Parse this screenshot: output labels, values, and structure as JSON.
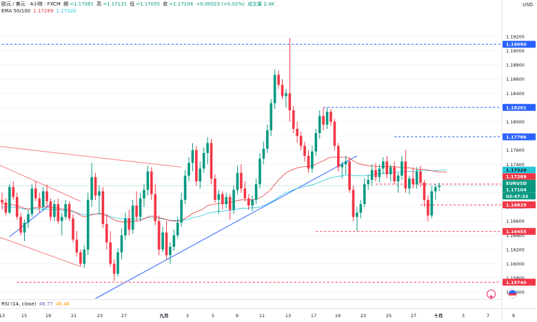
{
  "header": {
    "symbol_line": "欧元 / 美元 · 4小時 · FXCM",
    "open_label": "開",
    "open_value": "=1.17081",
    "high_label": "高",
    "high_value": "=1.17131",
    "low_label": "低",
    "low_value": "=1.17055",
    "close_label": "收",
    "close_value": "=1.17104",
    "change": "+0.00023 (+0.02%)",
    "volume": "成交量 2.4K"
  },
  "ema": {
    "label": "EMA 50/100",
    "value_50": "1.17289",
    "value_100": "1.17320",
    "color_50": "#e53935",
    "color_100": "#26c6da"
  },
  "rsi": {
    "label": "RSI (14, close)",
    "value": "46.77",
    "ma_value": "46.48",
    "color": "#7e57c2",
    "ma_color": "#ff9800"
  },
  "currency": "USD",
  "colors": {
    "up": "#089981",
    "down": "#f23645",
    "level_red": "#f23645",
    "level_blue": "#2962ff",
    "trend_pink": "#f77c80",
    "trend_blue": "#2962ff",
    "grid": "#f0f3fa"
  },
  "chart_data": {
    "type": "candlestick",
    "symbol": "EURUSD",
    "timeframe": "4小時",
    "yticks": [
      1.192,
      1.19,
      1.188,
      1.186,
      1.184,
      1.182,
      1.18,
      1.178,
      1.176,
      1.174,
      1.172,
      1.17,
      1.168,
      1.166,
      1.164,
      1.162,
      1.16,
      1.158,
      1.156
    ],
    "ytick_labels": [
      "1.19200",
      "1.19000",
      "1.18800",
      "1.18600",
      "1.18400",
      "1.18200",
      "1.18000",
      "1.17800",
      "1.17600",
      "1.17400",
      "1.17200",
      "1.17000",
      "1.16800",
      "1.16600",
      "1.16400",
      "1.16200",
      "1.16000",
      "1.15800",
      "1.15600"
    ],
    "ylim": [
      1.1551,
      1.195
    ],
    "xticks": [
      "13",
      "15",
      "19",
      "21",
      "23",
      "27",
      "九月",
      "3",
      "5",
      "9",
      "11",
      "13",
      "17",
      "19",
      "23",
      "25",
      "27",
      "十月",
      "3",
      "7",
      "9"
    ],
    "ohlc": [
      [
        1.169,
        1.17,
        1.1676,
        1.1686
      ],
      [
        1.1686,
        1.1692,
        1.1668,
        1.1672
      ],
      [
        1.1672,
        1.1712,
        1.167,
        1.1708
      ],
      [
        1.1708,
        1.1716,
        1.169,
        1.1694
      ],
      [
        1.1694,
        1.17,
        1.1662,
        1.1666
      ],
      [
        1.1666,
        1.1672,
        1.164,
        1.1644
      ],
      [
        1.1644,
        1.1662,
        1.1632,
        1.1658
      ],
      [
        1.1658,
        1.1676,
        1.165,
        1.167
      ],
      [
        1.167,
        1.1712,
        1.1666,
        1.1706
      ],
      [
        1.1706,
        1.1716,
        1.1688,
        1.1692
      ],
      [
        1.1692,
        1.17,
        1.1672,
        1.168
      ],
      [
        1.168,
        1.1708,
        1.1674,
        1.1702
      ],
      [
        1.1702,
        1.1712,
        1.168,
        1.1688
      ],
      [
        1.1688,
        1.1692,
        1.166,
        1.1666
      ],
      [
        1.1666,
        1.169,
        1.166,
        1.1684
      ],
      [
        1.1684,
        1.1692,
        1.1656,
        1.166
      ],
      [
        1.166,
        1.1672,
        1.164,
        1.1666
      ],
      [
        1.1666,
        1.169,
        1.1662,
        1.1684
      ],
      [
        1.1684,
        1.1688,
        1.166,
        1.1664
      ],
      [
        1.1664,
        1.167,
        1.163,
        1.1634
      ],
      [
        1.1634,
        1.1646,
        1.161,
        1.1616
      ],
      [
        1.1616,
        1.162,
        1.1596,
        1.16
      ],
      [
        1.16,
        1.1626,
        1.1594,
        1.162
      ],
      [
        1.162,
        1.17,
        1.1612,
        1.169
      ],
      [
        1.169,
        1.1742,
        1.168,
        1.1722
      ],
      [
        1.1722,
        1.1728,
        1.169,
        1.1696
      ],
      [
        1.1696,
        1.171,
        1.167,
        1.1702
      ],
      [
        1.1702,
        1.1708,
        1.165,
        1.1656
      ],
      [
        1.1656,
        1.167,
        1.162,
        1.163
      ],
      [
        1.163,
        1.1646,
        1.1596,
        1.16
      ],
      [
        1.16,
        1.1606,
        1.1576,
        1.1586
      ],
      [
        1.1586,
        1.1622,
        1.1582,
        1.1616
      ],
      [
        1.1616,
        1.165,
        1.1606,
        1.164
      ],
      [
        1.164,
        1.1672,
        1.1634,
        1.1664
      ],
      [
        1.1664,
        1.1676,
        1.164,
        1.1648
      ],
      [
        1.1648,
        1.169,
        1.1642,
        1.1682
      ],
      [
        1.1682,
        1.1702,
        1.166,
        1.1666
      ],
      [
        1.1666,
        1.17,
        1.166,
        1.1692
      ],
      [
        1.1692,
        1.1712,
        1.168,
        1.1704
      ],
      [
        1.1704,
        1.1738,
        1.1696,
        1.173
      ],
      [
        1.173,
        1.1736,
        1.169,
        1.1698
      ],
      [
        1.1698,
        1.1712,
        1.1654,
        1.166
      ],
      [
        1.166,
        1.1668,
        1.1612,
        1.162
      ],
      [
        1.162,
        1.1652,
        1.1616,
        1.1644
      ],
      [
        1.1644,
        1.166,
        1.1606,
        1.1612
      ],
      [
        1.1612,
        1.163,
        1.16,
        1.1624
      ],
      [
        1.1624,
        1.1648,
        1.1618,
        1.164
      ],
      [
        1.164,
        1.1666,
        1.1636,
        1.1658
      ],
      [
        1.1658,
        1.17,
        1.1652,
        1.169
      ],
      [
        1.169,
        1.1732,
        1.1684,
        1.1724
      ],
      [
        1.1724,
        1.175,
        1.1716,
        1.1742
      ],
      [
        1.1742,
        1.177,
        1.173,
        1.176
      ],
      [
        1.176,
        1.1766,
        1.171,
        1.1716
      ],
      [
        1.1716,
        1.1744,
        1.1706,
        1.1734
      ],
      [
        1.1734,
        1.1764,
        1.1728,
        1.1756
      ],
      [
        1.1756,
        1.1778,
        1.174,
        1.177
      ],
      [
        1.177,
        1.1776,
        1.1712,
        1.172
      ],
      [
        1.172,
        1.1726,
        1.1686,
        1.169
      ],
      [
        1.169,
        1.1704,
        1.167,
        1.1698
      ],
      [
        1.1698,
        1.1702,
        1.1676,
        1.1684
      ],
      [
        1.1684,
        1.17,
        1.1678,
        1.1694
      ],
      [
        1.1694,
        1.1698,
        1.1662,
        1.1676
      ],
      [
        1.1676,
        1.171,
        1.167,
        1.1704
      ],
      [
        1.1704,
        1.1738,
        1.1698,
        1.1728
      ],
      [
        1.1728,
        1.174,
        1.17,
        1.1706
      ],
      [
        1.1706,
        1.1716,
        1.1688,
        1.1692
      ],
      [
        1.1692,
        1.1698,
        1.1676,
        1.1682
      ],
      [
        1.1682,
        1.1696,
        1.1674,
        1.169
      ],
      [
        1.169,
        1.172,
        1.1684,
        1.1712
      ],
      [
        1.1712,
        1.1756,
        1.1706,
        1.1748
      ],
      [
        1.1748,
        1.1772,
        1.174,
        1.1762
      ],
      [
        1.1762,
        1.1796,
        1.1756,
        1.1788
      ],
      [
        1.1788,
        1.1832,
        1.178,
        1.1826
      ],
      [
        1.1826,
        1.1874,
        1.1818,
        1.1866
      ],
      [
        1.1866,
        1.1872,
        1.1846,
        1.1852
      ],
      [
        1.1852,
        1.186,
        1.1832,
        1.1836
      ],
      [
        1.1836,
        1.1846,
        1.182,
        1.184
      ],
      [
        1.184,
        1.1918,
        1.18,
        1.1816
      ],
      [
        1.1816,
        1.1822,
        1.1784,
        1.179
      ],
      [
        1.179,
        1.18,
        1.177,
        1.178
      ],
      [
        1.178,
        1.1786,
        1.176,
        1.1766
      ],
      [
        1.1766,
        1.1772,
        1.1744,
        1.1752
      ],
      [
        1.1752,
        1.176,
        1.1728,
        1.1734
      ],
      [
        1.1734,
        1.1766,
        1.1728,
        1.1758
      ],
      [
        1.1758,
        1.179,
        1.1752,
        1.1784
      ],
      [
        1.1784,
        1.1816,
        1.1776,
        1.1808
      ],
      [
        1.1808,
        1.182,
        1.1788,
        1.1796
      ],
      [
        1.1796,
        1.182,
        1.179,
        1.1814
      ],
      [
        1.1814,
        1.1818,
        1.1794,
        1.18
      ],
      [
        1.18,
        1.1804,
        1.176,
        1.1766
      ],
      [
        1.1766,
        1.177,
        1.173,
        1.1736
      ],
      [
        1.1736,
        1.1744,
        1.172,
        1.174
      ],
      [
        1.174,
        1.1752,
        1.1726,
        1.1744
      ],
      [
        1.1744,
        1.175,
        1.17,
        1.1704
      ],
      [
        1.1704,
        1.171,
        1.166,
        1.1666
      ],
      [
        1.1666,
        1.168,
        1.1646,
        1.1672
      ],
      [
        1.1672,
        1.169,
        1.1664,
        1.1684
      ],
      [
        1.1684,
        1.172,
        1.168,
        1.1712
      ],
      [
        1.1712,
        1.1726,
        1.1704,
        1.1718
      ],
      [
        1.1718,
        1.174,
        1.171,
        1.1732
      ],
      [
        1.1732,
        1.1742,
        1.1716,
        1.1722
      ],
      [
        1.1722,
        1.174,
        1.1714,
        1.1734
      ],
      [
        1.1734,
        1.175,
        1.1726,
        1.1744
      ],
      [
        1.1744,
        1.1752,
        1.172,
        1.1726
      ],
      [
        1.1726,
        1.174,
        1.1716,
        1.1736
      ],
      [
        1.1736,
        1.1744,
        1.1712,
        1.1716
      ],
      [
        1.1716,
        1.1728,
        1.17,
        1.1724
      ],
      [
        1.1724,
        1.1752,
        1.1718,
        1.1744
      ],
      [
        1.1744,
        1.176,
        1.17,
        1.1706
      ],
      [
        1.1706,
        1.1724,
        1.1698,
        1.172
      ],
      [
        1.172,
        1.1736,
        1.1706,
        1.1712
      ],
      [
        1.1712,
        1.1736,
        1.1706,
        1.173
      ],
      [
        1.173,
        1.1738,
        1.1708,
        1.1714
      ],
      [
        1.1714,
        1.1718,
        1.168,
        1.169
      ],
      [
        1.169,
        1.1696,
        1.166,
        1.1668
      ],
      [
        1.1668,
        1.171,
        1.1664,
        1.1702
      ],
      [
        1.1702,
        1.1712,
        1.169,
        1.1708
      ],
      [
        1.1708,
        1.1714,
        1.1702,
        1.171
      ]
    ],
    "ema50": [
      1.1685,
      1.1684,
      1.1684,
      1.1683,
      1.1682,
      1.168,
      1.1678,
      1.1677,
      1.1678,
      1.1679,
      1.1679,
      1.168,
      1.168,
      1.1679,
      1.1679,
      1.1678,
      1.1677,
      1.1677,
      1.1676,
      1.1674,
      1.1671,
      1.1668,
      1.1666,
      1.1667,
      1.1669,
      1.167,
      1.1671,
      1.167,
      1.1668,
      1.1665,
      1.1662,
      1.166,
      1.1659,
      1.1659,
      1.1659,
      1.166,
      1.166,
      1.1661,
      1.1663,
      1.1666,
      1.1667,
      1.1667,
      1.1665,
      1.1664,
      1.1662,
      1.1661,
      1.166,
      1.166,
      1.1661,
      1.1664,
      1.1667,
      1.1671,
      1.1673,
      1.1675,
      1.1678,
      1.1682,
      1.1683,
      1.1684,
      1.1685,
      1.1685,
      1.1686,
      1.1686,
      1.1687,
      1.1689,
      1.169,
      1.169,
      1.169,
      1.169,
      1.1691,
      1.1693,
      1.1696,
      1.17,
      1.1705,
      1.1712,
      1.1718,
      1.1723,
      1.1728,
      1.1731,
      1.1733,
      1.1735,
      1.1736,
      1.1737,
      1.1737,
      1.1738,
      1.174,
      1.1743,
      1.1745,
      1.1748,
      1.175,
      1.175,
      1.175,
      1.175,
      1.175,
      1.1748,
      1.1745,
      1.1742,
      1.174,
      1.1739,
      1.1738,
      1.1738,
      1.1737,
      1.1737,
      1.1737,
      1.1737,
      1.1737,
      1.1737,
      1.1736,
      1.1735,
      1.1735,
      1.1735,
      1.1734,
      1.1733,
      1.1733,
      1.1733,
      1.1732,
      1.1731,
      1.173,
      1.1729,
      1.1729,
      1.1729
    ],
    "ema100": [
      1.168,
      1.168,
      1.168,
      1.168,
      1.1679,
      1.1678,
      1.1677,
      1.1677,
      1.1677,
      1.1677,
      1.1677,
      1.1677,
      1.1677,
      1.1676,
      1.1676,
      1.1676,
      1.1675,
      1.1675,
      1.1674,
      1.1673,
      1.1672,
      1.167,
      1.1669,
      1.1669,
      1.167,
      1.167,
      1.167,
      1.1669,
      1.1668,
      1.1667,
      1.1665,
      1.1664,
      1.1663,
      1.1663,
      1.1663,
      1.1663,
      1.1663,
      1.1663,
      1.1664,
      1.1665,
      1.1665,
      1.1665,
      1.1664,
      1.1663,
      1.1662,
      1.1661,
      1.1661,
      1.1661,
      1.1661,
      1.1662,
      1.1663,
      1.1665,
      1.1666,
      1.1667,
      1.1669,
      1.1671,
      1.1672,
      1.1673,
      1.1674,
      1.1674,
      1.1675,
      1.1675,
      1.1676,
      1.1677,
      1.1678,
      1.1678,
      1.1678,
      1.1679,
      1.1679,
      1.168,
      1.1682,
      1.1684,
      1.1687,
      1.169,
      1.1694,
      1.1697,
      1.17,
      1.1702,
      1.1704,
      1.1706,
      1.1707,
      1.1709,
      1.171,
      1.1711,
      1.1713,
      1.1715,
      1.1717,
      1.1719,
      1.1721,
      1.1722,
      1.1723,
      1.1724,
      1.1725,
      1.1725,
      1.1724,
      1.1724,
      1.1724,
      1.1724,
      1.1724,
      1.1725,
      1.1726,
      1.1727,
      1.1727,
      1.1728,
      1.1728,
      1.1729,
      1.1729,
      1.1729,
      1.173,
      1.173,
      1.173,
      1.1731,
      1.1731,
      1.1731,
      1.1731,
      1.1731,
      1.1731,
      1.1731,
      1.1732,
      1.1732
    ],
    "levels": [
      {
        "price": 1.1909,
        "label": "1.19090",
        "color": "#2962ff",
        "from": 0
      },
      {
        "price": 1.18201,
        "label": "1.18201",
        "color": "#2962ff",
        "from": 86
      },
      {
        "price": 1.17786,
        "label": "1.17786",
        "color": "#2962ff",
        "from": 105
      },
      {
        "price": 1.17122,
        "label": "1.17122",
        "color": "#f23645",
        "from": 100
      },
      {
        "price": 1.16829,
        "label": "1.16829",
        "color": "#f23645",
        "from": 112
      },
      {
        "price": 1.16455,
        "label": "1.16455",
        "color": "#f23645",
        "from": 84
      },
      {
        "price": 1.1574,
        "label": "1.15740",
        "color": "#f23645",
        "from": 4
      }
    ],
    "price_tags": [
      {
        "label": "1.17320",
        "color": "#26c6da",
        "text_color": "#131722",
        "price": 1.1732
      },
      {
        "label": "1.17289",
        "color": "#f23645",
        "text_color": "#ffffff",
        "price": 1.17289
      },
      {
        "label": "EURUSD",
        "color": "#089981",
        "text_color": "#ffffff",
        "price": 1.17104
      },
      {
        "label": "1.17104",
        "color": "#089981",
        "text_color": "#ffffff",
        "price": 1.17104
      },
      {
        "label": "02:47:33",
        "color": "#089981",
        "text_color": "#ffffff",
        "price": 1.1706
      }
    ],
    "trendlines": [
      {
        "from": [
          -2,
          1.1766
        ],
        "to": [
          48,
          1.1736
        ],
        "color": "#f77c80"
      },
      {
        "from": [
          -2,
          1.1742
        ],
        "to": [
          21,
          1.1688
        ],
        "color": "#f77c80"
      },
      {
        "from": [
          -2,
          1.164
        ],
        "to": [
          21,
          1.1596
        ],
        "color": "#f77c80"
      },
      {
        "from": [
          25,
          1.1551
        ],
        "to": [
          95,
          1.1752
        ],
        "color": "#2962ff"
      },
      {
        "from": [
          2,
          1.1638
        ],
        "to": [
          13,
          1.1684
        ],
        "color": "#2962ff"
      }
    ]
  }
}
